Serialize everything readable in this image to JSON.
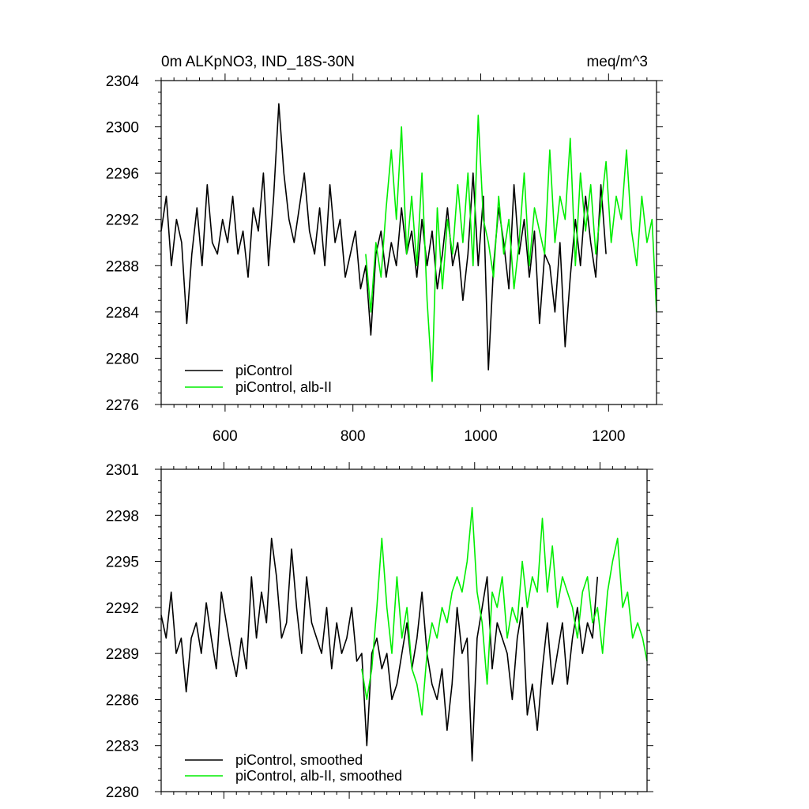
{
  "chart_data": [
    {
      "type": "line",
      "title": "0m ALKpNO3, IND_18S-30N",
      "units": "meq/m^3",
      "xlabel": "",
      "ylabel": "",
      "xlim": [
        500,
        1275
      ],
      "ylim": [
        2276,
        2304
      ],
      "xticks": [
        600,
        800,
        1000,
        1200
      ],
      "xtick_labels": [
        "600",
        "800",
        "1000",
        "1200"
      ],
      "yticks": [
        2276,
        2280,
        2284,
        2288,
        2292,
        2296,
        2300,
        2304
      ],
      "ytick_labels": [
        "2276",
        "2280",
        "2284",
        "2288",
        "2292",
        "2296",
        "2300",
        "2304"
      ],
      "legend_position": "bottom-left",
      "series": [
        {
          "name": "piControl",
          "color": "#000000",
          "x": [
            500,
            508,
            516,
            524,
            532,
            540,
            548,
            556,
            564,
            572,
            580,
            588,
            596,
            604,
            612,
            620,
            628,
            636,
            644,
            652,
            660,
            668,
            676,
            684,
            692,
            700,
            708,
            716,
            724,
            732,
            740,
            748,
            756,
            764,
            772,
            780,
            788,
            796,
            804,
            812,
            820,
            828,
            836,
            844,
            852,
            860,
            868,
            876,
            884,
            892,
            900,
            908,
            916,
            924,
            932,
            940,
            948,
            956,
            964,
            972,
            980,
            988,
            996,
            1004,
            1012,
            1020,
            1028,
            1036,
            1044,
            1052,
            1060,
            1068,
            1076,
            1084,
            1092,
            1100,
            1108,
            1116,
            1124,
            1132,
            1140,
            1148,
            1156,
            1164,
            1172,
            1180,
            1188,
            1196
          ],
          "values": [
            2291,
            2294,
            2288,
            2292,
            2290,
            2283,
            2289,
            2293,
            2288,
            2295,
            2290,
            2289,
            2292,
            2290,
            2294,
            2289,
            2291,
            2287,
            2293,
            2291,
            2296,
            2288,
            2294,
            2302,
            2296,
            2292,
            2290,
            2293,
            2296,
            2291,
            2289,
            2293,
            2288,
            2295,
            2290,
            2292,
            2287,
            2289,
            2291,
            2286,
            2288,
            2282,
            2289,
            2291,
            2287,
            2290,
            2288,
            2293,
            2289,
            2291,
            2287,
            2292,
            2288,
            2291,
            2286,
            2289,
            2293,
            2288,
            2290,
            2285,
            2289,
            2296,
            2288,
            2294,
            2279,
            2288,
            2293,
            2290,
            2286,
            2295,
            2289,
            2292,
            2287,
            2291,
            2283,
            2289,
            2288,
            2284,
            2290,
            2281,
            2287,
            2292,
            2288,
            2294,
            2290,
            2287,
            2295,
            2289
          ],
          "x_extra_note": ""
        },
        {
          "name": "piControl, alb-II",
          "color": "#00ee00",
          "x": [
            820,
            828,
            836,
            844,
            852,
            860,
            868,
            876,
            884,
            892,
            900,
            908,
            916,
            924,
            932,
            940,
            948,
            956,
            964,
            972,
            980,
            988,
            996,
            1004,
            1012,
            1020,
            1028,
            1036,
            1044,
            1052,
            1060,
            1068,
            1076,
            1084,
            1092,
            1100,
            1108,
            1116,
            1124,
            1132,
            1140,
            1148,
            1156,
            1164,
            1172,
            1180,
            1188,
            1196,
            1204,
            1212,
            1220,
            1228,
            1236,
            1244,
            1252,
            1260,
            1268,
            1275
          ],
          "values": [
            2289,
            2284,
            2290,
            2287,
            2293,
            2298,
            2292,
            2300,
            2289,
            2294,
            2288,
            2296,
            2285,
            2278,
            2293,
            2286,
            2292,
            2289,
            2295,
            2290,
            2296,
            2288,
            2301,
            2292,
            2290,
            2287,
            2294,
            2289,
            2292,
            2286,
            2290,
            2296,
            2288,
            2293,
            2291,
            2289,
            2298,
            2290,
            2294,
            2292,
            2299,
            2288,
            2296,
            2291,
            2295,
            2289,
            2293,
            2297,
            2290,
            2294,
            2292,
            2298,
            2291,
            2288,
            2294,
            2290,
            2292,
            2284
          ]
        }
      ]
    },
    {
      "type": "line",
      "title": "",
      "xlabel": "",
      "ylabel": "",
      "xlim": [
        500,
        1275
      ],
      "ylim": [
        2280,
        2301
      ],
      "xticks": [
        600,
        800,
        1000,
        1200
      ],
      "xtick_labels": [],
      "yticks": [
        2280,
        2283,
        2286,
        2289,
        2292,
        2295,
        2298,
        2301
      ],
      "ytick_labels": [
        "2280",
        "2283",
        "2286",
        "2289",
        "2292",
        "2295",
        "2298",
        "2301"
      ],
      "legend_position": "bottom-left",
      "series": [
        {
          "name": "piControl, smoothed",
          "color": "#000000",
          "x": [
            500,
            508,
            516,
            524,
            532,
            540,
            548,
            556,
            564,
            572,
            580,
            588,
            596,
            604,
            612,
            620,
            628,
            636,
            644,
            652,
            660,
            668,
            676,
            684,
            692,
            700,
            708,
            716,
            724,
            732,
            740,
            748,
            756,
            764,
            772,
            780,
            788,
            796,
            804,
            812,
            820,
            828,
            836,
            844,
            852,
            860,
            868,
            876,
            884,
            892,
            900,
            908,
            916,
            924,
            932,
            940,
            948,
            956,
            964,
            972,
            980,
            988,
            996,
            1004,
            1012,
            1020,
            1028,
            1036,
            1044,
            1052,
            1060,
            1068,
            1076,
            1084,
            1092,
            1100,
            1108,
            1116,
            1124,
            1132,
            1140,
            1148,
            1156,
            1164,
            1172,
            1180,
            1188,
            1196
          ],
          "values": [
            2291.5,
            2290,
            2293,
            2289,
            2290,
            2286.5,
            2290,
            2291,
            2289,
            2292.3,
            2290,
            2288,
            2293,
            2291,
            2289,
            2287.5,
            2290,
            2288,
            2294,
            2290,
            2293,
            2291,
            2296.5,
            2294,
            2290,
            2291,
            2295.8,
            2292,
            2289,
            2294,
            2291,
            2290,
            2289,
            2292,
            2288,
            2291,
            2289,
            2290,
            2292,
            2288.5,
            2289,
            2283,
            2289,
            2290,
            2288,
            2289,
            2286,
            2287,
            2289,
            2291,
            2288,
            2290,
            2293,
            2289,
            2287,
            2286,
            2288,
            2284,
            2287,
            2292,
            2289,
            2290,
            2282,
            2290,
            2292,
            2294,
            2288,
            2291,
            2290,
            2289,
            2286,
            2290,
            2292,
            2285,
            2287,
            2284,
            2288,
            2291,
            2287,
            2289,
            2291,
            2287,
            2290,
            2292,
            2289,
            2291,
            2290,
            2294
          ]
        },
        {
          "name": "piControl, alb-II, smoothed",
          "color": "#00ee00",
          "x": [
            820,
            828,
            836,
            844,
            852,
            860,
            868,
            876,
            884,
            892,
            900,
            908,
            916,
            924,
            932,
            940,
            948,
            956,
            964,
            972,
            980,
            988,
            996,
            1004,
            1012,
            1020,
            1028,
            1036,
            1044,
            1052,
            1060,
            1068,
            1076,
            1084,
            1092,
            1100,
            1108,
            1116,
            1124,
            1132,
            1140,
            1148,
            1156,
            1164,
            1172,
            1180,
            1188,
            1196,
            1204,
            1212,
            1220,
            1228,
            1236,
            1244,
            1252,
            1260,
            1268,
            1275
          ],
          "values": [
            2288,
            2286,
            2288,
            2292,
            2296.5,
            2292,
            2289,
            2294,
            2290,
            2292,
            2288,
            2287,
            2285,
            2289,
            2291,
            2290,
            2292,
            2291,
            2293,
            2294,
            2293,
            2295,
            2298.5,
            2293,
            2291,
            2287,
            2293,
            2292,
            2294,
            2290,
            2292,
            2291,
            2295,
            2292,
            2294,
            2293,
            2297.8,
            2293,
            2296,
            2292,
            2294,
            2293,
            2292,
            2290,
            2293,
            2294,
            2291,
            2292,
            2289,
            2293,
            2295,
            2296.5,
            2292,
            2293,
            2290,
            2291,
            2290,
            2288.5
          ]
        }
      ]
    }
  ],
  "icons": []
}
